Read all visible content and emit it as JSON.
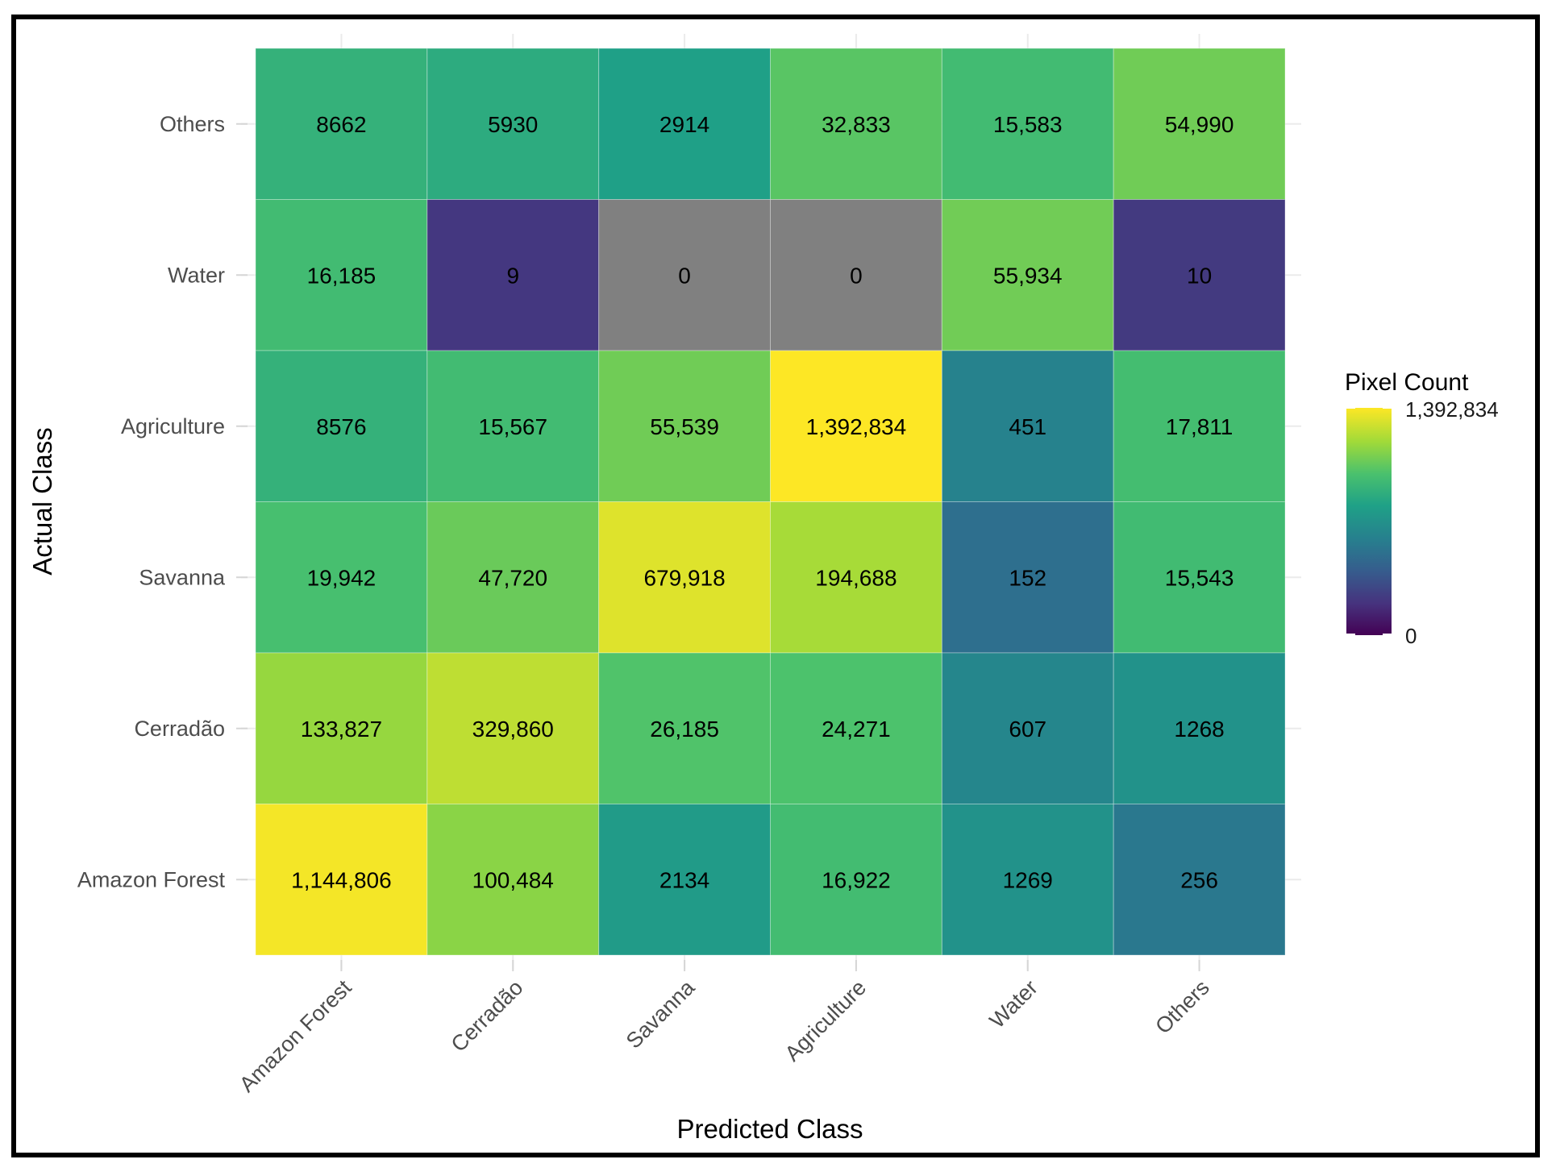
{
  "chart_data": {
    "type": "heatmap",
    "title": "",
    "xlabel": "Predicted Class",
    "ylabel": "Actual Class",
    "x_categories": [
      "Amazon Forest",
      "Cerradão",
      "Savanna",
      "Agriculture",
      "Water",
      "Others"
    ],
    "y_categories": [
      "Others",
      "Water",
      "Agriculture",
      "Savanna",
      "Cerradão",
      "Amazon Forest"
    ],
    "values": [
      [
        8662,
        5930,
        2914,
        32833,
        15583,
        54990
      ],
      [
        16185,
        9,
        0,
        0,
        55934,
        10
      ],
      [
        8576,
        15567,
        55539,
        1392834,
        451,
        17811
      ],
      [
        19942,
        47720,
        679918,
        194688,
        152,
        15543
      ],
      [
        133827,
        329860,
        26185,
        24271,
        607,
        1268
      ],
      [
        1144806,
        100484,
        2134,
        16922,
        1269,
        256
      ]
    ],
    "labels": [
      [
        "8662",
        "5930",
        "2914",
        "32,833",
        "15,583",
        "54,990"
      ],
      [
        "16,185",
        "9",
        "0",
        "0",
        "55,934",
        "10"
      ],
      [
        "8576",
        "15,567",
        "55,539",
        "1,392,834",
        "451",
        "17,811"
      ],
      [
        "19,942",
        "47,720",
        "679,918",
        "194,688",
        "152",
        "15,543"
      ],
      [
        "133,827",
        "329,860",
        "26,185",
        "24,271",
        "607",
        "1268"
      ],
      [
        "1,144,806",
        "100,484",
        "2134",
        "16,922",
        "1269",
        "256"
      ]
    ],
    "legend": {
      "title": "Pixel Count",
      "max_label": "1,392,834",
      "min_label": "0",
      "min": 0,
      "max": 1392834,
      "position": "right"
    },
    "colormap": "viridis",
    "zero_color": "#808080",
    "grid": true
  }
}
